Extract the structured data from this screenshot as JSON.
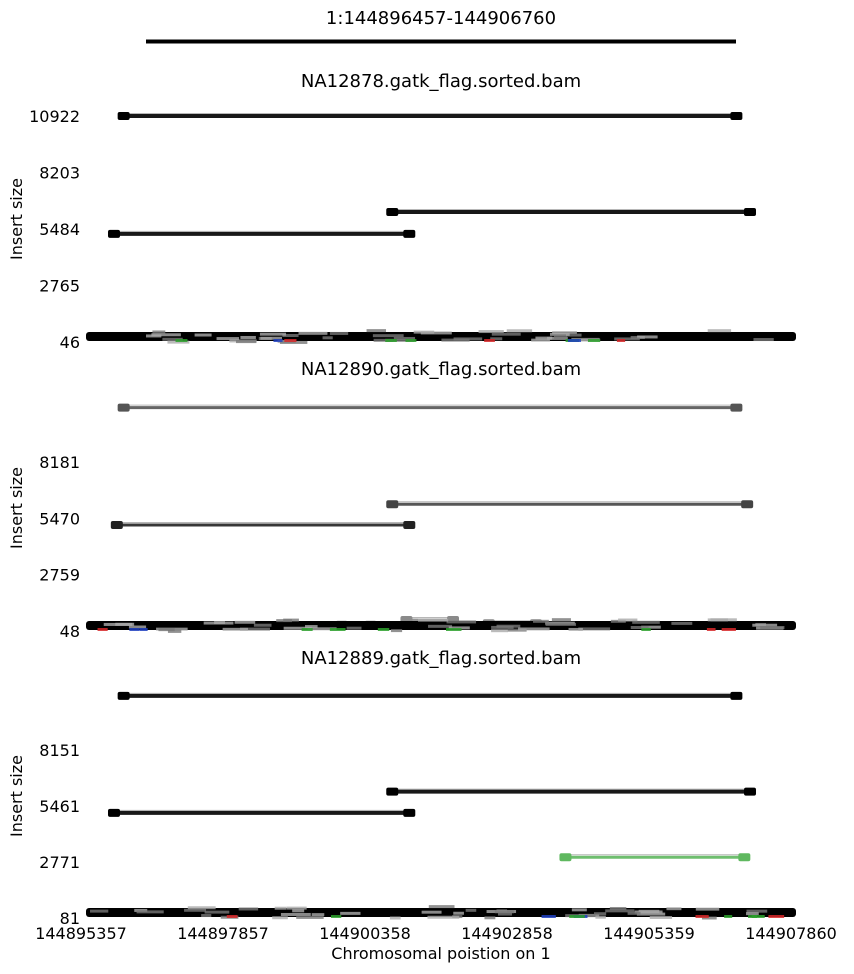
{
  "chart_data": {
    "type": "scatter",
    "title": "1:144896457-144906760",
    "xlabel": "Chromosomal poistion on 1",
    "ylabel": "Insert size",
    "xlim": [
      144895357,
      144907860
    ],
    "xticks": [
      "144895357",
      "144897857",
      "144900358",
      "144902858",
      "144905359",
      "144907860"
    ],
    "grid": false,
    "legend": "none",
    "colors": {
      "pair_normal": "#000000",
      "pair_light": "#9a9a9a",
      "read_red": "#d62728",
      "read_green": "#2ca02c",
      "read_blue": "#1f3fbf",
      "green_pair": "#5fb85f"
    },
    "panels": [
      {
        "title": "NA12878.gatk_flag.sorted.bam",
        "ylabel": "Insert size",
        "yticks": [
          "10922",
          "8203",
          "5484",
          "2765",
          "46"
        ],
        "ylim": [
          46,
          10922
        ],
        "pairs": [
          {
            "start": 144896020,
            "end": 144906810,
            "insert": 10922,
            "color": "#000000"
          },
          {
            "start": 144895850,
            "end": 144901050,
            "insert": 5250,
            "color": "#000000"
          },
          {
            "start": 144900750,
            "end": 144907050,
            "insert": 6300,
            "color": "#000000"
          }
        ]
      },
      {
        "title": "NA12890.gatk_flag.sorted.bam",
        "ylabel": "Insert size",
        "yticks": [
          "8181",
          "5470",
          "2759",
          "48"
        ],
        "ylim": [
          48,
          8181
        ],
        "pairs": [
          {
            "start": 144896020,
            "end": 144906810,
            "insert": 10800,
            "color": "#555555"
          },
          {
            "start": 144895900,
            "end": 144901050,
            "insert": 5150,
            "color": "#222222"
          },
          {
            "start": 144900750,
            "end": 144907000,
            "insert": 6150,
            "color": "#444444"
          },
          {
            "start": 144899860,
            "end": 144900370,
            "insert": 350,
            "color": "#8a8a8a"
          },
          {
            "start": 144901000,
            "end": 144901820,
            "insert": 580,
            "color": "#8a8a8a"
          },
          {
            "start": 144902450,
            "end": 144903280,
            "insert": 420,
            "color": "#8a8a8a"
          }
        ]
      },
      {
        "title": "NA12889.gatk_flag.sorted.bam",
        "ylabel": "Insert size",
        "yticks": [
          "8151",
          "5461",
          "2771",
          "81"
        ],
        "ylim": [
          81,
          8151
        ],
        "pairs": [
          {
            "start": 144896020,
            "end": 144906810,
            "insert": 10750,
            "color": "#000000"
          },
          {
            "start": 144895850,
            "end": 144901050,
            "insert": 5130,
            "color": "#000000"
          },
          {
            "start": 144900750,
            "end": 144907050,
            "insert": 6150,
            "color": "#000000"
          },
          {
            "start": 144903800,
            "end": 144906950,
            "insert": 3000,
            "color": "#5fb85f"
          }
        ]
      }
    ]
  }
}
